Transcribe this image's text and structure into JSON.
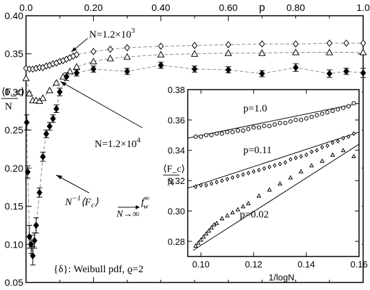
{
  "chart_data": [
    {
      "type": "scatter",
      "xlabel": "p",
      "ylabel_top": "⟨F_c⟩",
      "ylabel_bottom": "N",
      "xlim": [
        0.0,
        1.0
      ],
      "ylim": [
        0.05,
        0.4
      ],
      "x_ticks": [
        "0.0",
        "0.20",
        "0.40",
        "0.60",
        "p",
        "0.80",
        "1.0"
      ],
      "y_ticks": [
        "0.05",
        "0.10",
        "0.15",
        "0.20",
        "0.25",
        "0.30",
        "0.35",
        "0.40"
      ],
      "series": [
        {
          "name": "N=1.2×10³",
          "marker": "diamond-open",
          "x": [
            0.0,
            0.01,
            0.02,
            0.03,
            0.04,
            0.05,
            0.06,
            0.07,
            0.08,
            0.09,
            0.1,
            0.11,
            0.12,
            0.13,
            0.14,
            0.15,
            0.2,
            0.25,
            0.3,
            0.4,
            0.5,
            0.6,
            0.7,
            0.8,
            0.9,
            0.95,
            1.0
          ],
          "y": [
            0.331,
            0.33,
            0.33,
            0.331,
            0.332,
            0.332,
            0.334,
            0.335,
            0.337,
            0.338,
            0.34,
            0.341,
            0.343,
            0.345,
            0.347,
            0.349,
            0.353,
            0.356,
            0.358,
            0.36,
            0.361,
            0.362,
            0.363,
            0.363,
            0.364,
            0.364,
            0.364
          ]
        },
        {
          "name": "N=1.2×10⁴",
          "marker": "triangle-open",
          "x": [
            0.0,
            0.01,
            0.02,
            0.03,
            0.04,
            0.05,
            0.07,
            0.09,
            0.11,
            0.13,
            0.15,
            0.2,
            0.25,
            0.3,
            0.4,
            0.5,
            0.6,
            0.7,
            0.8,
            0.9,
            1.0
          ],
          "y": [
            0.318,
            0.298,
            0.289,
            0.289,
            0.288,
            0.292,
            0.302,
            0.312,
            0.32,
            0.327,
            0.333,
            0.34,
            0.344,
            0.346,
            0.349,
            0.35,
            0.351,
            0.351,
            0.352,
            0.352,
            0.352
          ]
        },
        {
          "name": "N⁻¹⟨F_c⟩ → f_w^∞ (N→∞)",
          "marker": "diamond-filled",
          "x": [
            0.002,
            0.005,
            0.01,
            0.015,
            0.02,
            0.025,
            0.03,
            0.04,
            0.05,
            0.06,
            0.07,
            0.08,
            0.09,
            0.1,
            0.12,
            0.15,
            0.2,
            0.3,
            0.4,
            0.5,
            0.6,
            0.7,
            0.8,
            0.9,
            0.95,
            1.0
          ],
          "y": [
            0.26,
            0.195,
            0.11,
            0.1,
            0.085,
            0.105,
            0.125,
            0.168,
            0.215,
            0.245,
            0.255,
            0.265,
            0.278,
            0.3,
            0.32,
            0.325,
            0.33,
            0.327,
            0.335,
            0.33,
            0.329,
            0.324,
            0.332,
            0.324,
            0.327,
            0.325
          ],
          "error": [
            0.01,
            0.008,
            0.015,
            0.012,
            0.012,
            0.01,
            0.01,
            0.006,
            0.006,
            0.005,
            0.005,
            0.005,
            0.005,
            0.005,
            0.005,
            0.004,
            0.004,
            0.004,
            0.004,
            0.004,
            0.004,
            0.004,
            0.005,
            0.005,
            0.004,
            0.006
          ]
        }
      ]
    },
    {
      "type": "scatter",
      "xlabel": "1/logN",
      "ylabel_top": "⟨F_c⟩",
      "ylabel_bottom": "N",
      "xlim": [
        0.095,
        0.16
      ],
      "ylim": [
        0.27,
        0.38
      ],
      "x_ticks": [
        "0.10",
        "0.12",
        "0.14",
        "0.16"
      ],
      "y_ticks": [
        "0.28",
        "0.30",
        "0.32",
        "0.34",
        "0.36",
        "0.38"
      ],
      "series": [
        {
          "name": "p=1.0",
          "marker": "circle-open",
          "x": [
            0.098,
            0.1,
            0.102,
            0.104,
            0.106,
            0.108,
            0.11,
            0.112,
            0.114,
            0.116,
            0.118,
            0.12,
            0.122,
            0.124,
            0.126,
            0.128,
            0.13,
            0.132,
            0.134,
            0.136,
            0.138,
            0.14,
            0.142,
            0.144,
            0.146,
            0.148,
            0.15,
            0.152,
            0.154,
            0.156,
            0.158
          ],
          "y": [
            0.349,
            0.349,
            0.35,
            0.35,
            0.351,
            0.351,
            0.352,
            0.352,
            0.353,
            0.353,
            0.354,
            0.355,
            0.355,
            0.356,
            0.356,
            0.357,
            0.358,
            0.358,
            0.359,
            0.36,
            0.36,
            0.361,
            0.362,
            0.363,
            0.364,
            0.365,
            0.366,
            0.367,
            0.368,
            0.369,
            0.371
          ],
          "fit": [
            [
              0.095,
              0.348
            ],
            [
              0.16,
              0.371
            ]
          ]
        },
        {
          "name": "p=0.11",
          "marker": "diamond-open",
          "x": [
            0.098,
            0.1,
            0.102,
            0.104,
            0.106,
            0.108,
            0.11,
            0.112,
            0.114,
            0.116,
            0.118,
            0.12,
            0.122,
            0.124,
            0.126,
            0.128,
            0.13,
            0.132,
            0.134,
            0.136,
            0.138,
            0.14,
            0.142,
            0.144,
            0.146,
            0.148,
            0.15,
            0.152,
            0.154,
            0.156,
            0.158
          ],
          "y": [
            0.316,
            0.317,
            0.317,
            0.318,
            0.319,
            0.32,
            0.321,
            0.322,
            0.323,
            0.324,
            0.325,
            0.326,
            0.327,
            0.328,
            0.329,
            0.33,
            0.331,
            0.332,
            0.334,
            0.335,
            0.336,
            0.337,
            0.339,
            0.34,
            0.342,
            0.343,
            0.345,
            0.346,
            0.348,
            0.349,
            0.351
          ],
          "fit": [
            [
              0.095,
              0.315
            ],
            [
              0.16,
              0.352
            ]
          ]
        },
        {
          "name": "p=0.02",
          "marker": "triangle-open",
          "x": [
            0.098,
            0.099,
            0.1,
            0.101,
            0.102,
            0.103,
            0.104,
            0.105,
            0.106,
            0.108,
            0.11,
            0.112,
            0.114,
            0.116,
            0.118,
            0.122,
            0.126,
            0.13,
            0.134,
            0.138,
            0.142,
            0.146,
            0.15,
            0.154,
            0.158
          ],
          "y": [
            0.277,
            0.279,
            0.281,
            0.283,
            0.285,
            0.287,
            0.289,
            0.291,
            0.292,
            0.295,
            0.297,
            0.299,
            0.301,
            0.303,
            0.305,
            0.31,
            0.314,
            0.318,
            0.322,
            0.326,
            0.33,
            0.333,
            0.337,
            0.34,
            0.336
          ],
          "fit": [
            [
              0.097,
              0.274
            ],
            [
              0.16,
              0.344
            ]
          ]
        }
      ]
    }
  ],
  "annotations": {
    "n1": "N=1.2×10",
    "n1_exp": "3",
    "n2": "N=1.2×10",
    "n2_exp": "4",
    "limit_prefix": "N",
    "limit_exp": "−1",
    "limit_mid": "⟨F",
    "limit_sub": "c",
    "limit_close": "⟩",
    "limit_under": "N→∞",
    "limit_f": "f",
    "limit_fsup": "∞",
    "limit_fsub": "w",
    "caption": "{δ}: Weibull pdf, ϱ=2",
    "inset_p1": "p=1.0",
    "inset_p2": "p=0.11",
    "inset_p3": "p=0.02"
  }
}
